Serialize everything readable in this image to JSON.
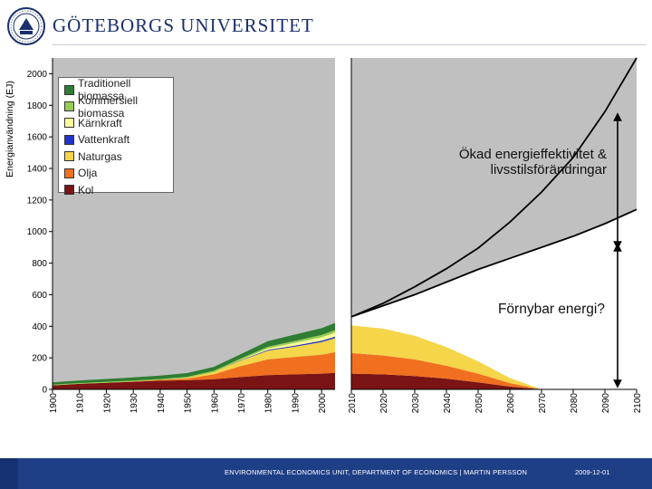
{
  "header": {
    "brand": "GÖTEBORGS UNIVERSITET",
    "brand_color": "#1a2f6b"
  },
  "footer": {
    "text": "ENVIRONMENTAL ECONOMICS UNIT, DEPARTMENT OF ECONOMICS  |  MARTIN PERSSON",
    "date": "2009-12-01",
    "bg_color": "#1e3f86"
  },
  "chart_data": {
    "type": "area",
    "title": "",
    "ylabel": "Energianvändning (EJ)",
    "ylim": [
      0,
      2100
    ],
    "yticks": [
      0,
      200,
      400,
      600,
      800,
      1000,
      1200,
      1400,
      1600,
      1800,
      2000
    ],
    "grid": false,
    "legend": "top-left",
    "historical": {
      "x": [
        1900,
        1910,
        1920,
        1930,
        1940,
        1950,
        1960,
        1970,
        1980,
        1990,
        2000,
        2005
      ],
      "xticks": [
        "1900",
        "1910",
        "1920",
        "1930",
        "1940",
        "1950",
        "1960",
        "1970",
        "1980",
        "1990",
        "2000"
      ],
      "series": [
        {
          "name": "Kol",
          "color": "#7a1414",
          "values": [
            25,
            35,
            42,
            48,
            55,
            58,
            65,
            78,
            90,
            95,
            100,
            105
          ]
        },
        {
          "name": "Olja",
          "color": "#f07020",
          "values": [
            0,
            0,
            0,
            2,
            5,
            10,
            30,
            70,
            100,
            110,
            120,
            130
          ]
        },
        {
          "name": "Naturgas",
          "color": "#f5d54a",
          "values": [
            0,
            0,
            0,
            0,
            0,
            5,
            15,
            35,
            55,
            65,
            80,
            90
          ]
        },
        {
          "name": "Vattenkraft",
          "color": "#2233cc",
          "values": [
            0,
            0,
            0,
            0,
            0,
            0,
            0,
            2,
            5,
            7,
            8,
            9
          ]
        },
        {
          "name": "Kärnkraft",
          "color": "#ffff99",
          "values": [
            0,
            0,
            0,
            0,
            0,
            0,
            0,
            2,
            10,
            18,
            22,
            25
          ]
        },
        {
          "name": "Kommersiell biomassa",
          "color": "#99cc55",
          "values": [
            5,
            5,
            6,
            6,
            6,
            7,
            8,
            9,
            10,
            12,
            15,
            17
          ]
        },
        {
          "name": "Traditionell biomassa",
          "color": "#2e7d32",
          "values": [
            15,
            17,
            18,
            20,
            21,
            23,
            25,
            28,
            35,
            40,
            43,
            45
          ]
        }
      ]
    },
    "projection": {
      "x": [
        2010,
        2020,
        2030,
        2040,
        2050,
        2060,
        2070,
        2080,
        2090,
        2100
      ],
      "xticks": [
        "2010",
        "2020",
        "2030",
        "2040",
        "2050",
        "2060",
        "2070",
        "2080",
        "2090",
        "2100"
      ],
      "fossil_series": [
        {
          "name": "Kol",
          "color": "#7a1414",
          "values": [
            100,
            95,
            85,
            68,
            45,
            18,
            0,
            0,
            0,
            0
          ]
        },
        {
          "name": "Olja",
          "color": "#f07020",
          "values": [
            130,
            120,
            105,
            82,
            55,
            22,
            0,
            0,
            0,
            0
          ]
        },
        {
          "name": "Naturgas",
          "color": "#f5d54a",
          "values": [
            175,
            170,
            150,
            118,
            78,
            32,
            0,
            0,
            0,
            0
          ]
        }
      ],
      "renewable_upper": [
        460,
        530,
        600,
        680,
        760,
        830,
        900,
        970,
        1050,
        1140
      ],
      "total_demand": [
        460,
        545,
        650,
        765,
        895,
        1060,
        1250,
        1470,
        1760,
        2100
      ],
      "colors": {
        "renewable": "#ffffff",
        "efficiency_gap": "#c0c0c0",
        "background": "#c0c0c0"
      }
    },
    "annotations": [
      {
        "text": "Ökad energieffektivitet & livsstilsförändringar"
      },
      {
        "text": "Förnybar energi?"
      }
    ]
  }
}
